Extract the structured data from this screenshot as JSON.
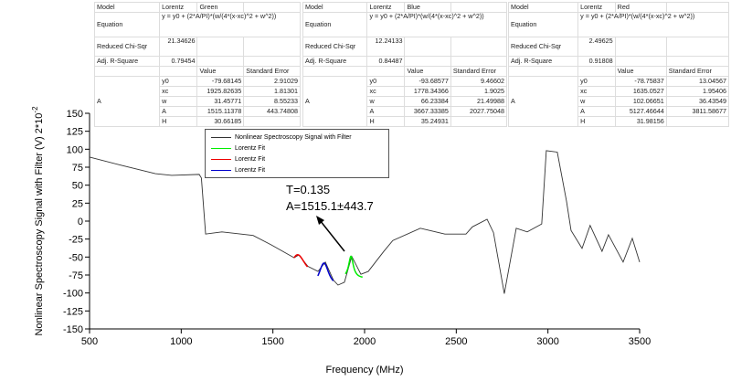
{
  "chart_data": {
    "type": "line",
    "xlabel": "Frequency (MHz)",
    "ylabel": "Nonlinear Spectroscopy Signal with Filter (V) 2*10",
    "ylabel_exponent": "-2",
    "xlim": [
      500,
      3500
    ],
    "ylim": [
      -150,
      150
    ],
    "xticks": [
      "500",
      "1000",
      "1500",
      "2000",
      "2500",
      "3000",
      "3500"
    ],
    "yticks": [
      "150",
      "125",
      "100",
      "75",
      "50",
      "25",
      "0",
      "-25",
      "-50",
      "-75",
      "-100",
      "-125",
      "-150"
    ],
    "legend_position": "top-center",
    "series": [
      {
        "name": "Nonlinear Spectroscopy Signal with Filter",
        "color": "#333333",
        "x": [
          500,
          674,
          859,
          948,
          1098,
          1110,
          1133,
          1222,
          1392,
          1491,
          1616,
          1641,
          1691,
          1746,
          1786,
          1830,
          1855,
          1890,
          1930,
          1980,
          2020,
          2105,
          2154,
          2304,
          2438,
          2553,
          2588,
          2668,
          2703,
          2762,
          2827,
          2887,
          2966,
          2991,
          3051,
          3101,
          3126,
          3186,
          3230,
          3295,
          3330,
          3410,
          3460,
          3500
        ],
        "y": [
          89,
          77.6,
          66,
          63.6,
          65,
          60,
          -18,
          -15,
          -20,
          -33,
          -51,
          -47,
          -63,
          -70,
          -57,
          -82,
          -89,
          -85,
          -49,
          -74,
          -70,
          -42,
          -27,
          -10,
          -18,
          -18,
          -8,
          2.6,
          -16,
          -101,
          -10,
          -15,
          -4,
          98,
          96,
          28,
          -13,
          -38,
          -6,
          -42,
          -19,
          -57,
          -24,
          -57
        ]
      },
      {
        "name": "Lorentz Fit",
        "color": "#00ee00",
        "fit": {
          "y0": -79.68145,
          "xc": 1925.82635,
          "w": 31.45771,
          "A": 1515.11378
        },
        "range": [
          1895,
          1990
        ]
      },
      {
        "name": "Lorentz Fit",
        "color": "#ee0000",
        "fit": {
          "y0": -78.75837,
          "xc": 1635.0527,
          "w": 102.06651,
          "A": 5127.46644
        },
        "range": [
          1615,
          1690
        ]
      },
      {
        "name": "Lorentz Fit",
        "color": "#0000cc",
        "fit": {
          "y0": -93.68577,
          "xc": 1778.34366,
          "w": 66.23384,
          "A": 3667.33385
        },
        "range": [
          1745,
          1830
        ]
      }
    ],
    "annotation": {
      "line1": "T=0.135",
      "line2": "A=1515.1±443.7"
    }
  },
  "fit_tables": [
    {
      "model_label": "Model",
      "model": "Lorentz",
      "name": "Green",
      "equation_label": "Equation",
      "equation": "y = y0 + (2*A/PI)*(w/(4*(x-xc)^2 + w^2))",
      "chi_label": "Reduced Chi-Sqr",
      "chi": "21.34626",
      "r2_label": "Adj. R-Square",
      "r2": "0.79454",
      "value_header": "Value",
      "error_header": "Standard Error",
      "group": "A",
      "params": [
        {
          "p": "y0",
          "v": "-79.68145",
          "e": "2.91029"
        },
        {
          "p": "xc",
          "v": "1925.82635",
          "e": "1.81301"
        },
        {
          "p": "w",
          "v": "31.45771",
          "e": "8.55233"
        },
        {
          "p": "A",
          "v": "1515.11378",
          "e": "443.74808"
        },
        {
          "p": "H",
          "v": "30.66185",
          "e": ""
        }
      ]
    },
    {
      "model_label": "Model",
      "model": "Lorentz",
      "name": "Blue",
      "equation_label": "Equation",
      "equation": "y = y0 + (2*A/PI)*(w/(4*(x-xc)^2 + w^2))",
      "chi_label": "Reduced Chi-Sqr",
      "chi": "12.24133",
      "r2_label": "Adj. R-Square",
      "r2": "0.84487",
      "value_header": "Value",
      "error_header": "Standard Error",
      "group": "A",
      "params": [
        {
          "p": "y0",
          "v": "-93.68577",
          "e": "9.46602"
        },
        {
          "p": "xc",
          "v": "1778.34366",
          "e": "1.9025"
        },
        {
          "p": "w",
          "v": "66.23384",
          "e": "21.49988"
        },
        {
          "p": "A",
          "v": "3667.33385",
          "e": "2027.75048"
        },
        {
          "p": "H",
          "v": "35.24931",
          "e": ""
        }
      ]
    },
    {
      "model_label": "Model",
      "model": "Lorentz",
      "name": "Red",
      "equation_label": "Equation",
      "equation": "y = y0 + (2*A/PI)*(w/(4*(x-xc)^2 + w^2))",
      "chi_label": "Reduced Chi-Sqr",
      "chi": "2.49625",
      "r2_label": "Adj. R-Square",
      "r2": "0.91808",
      "value_header": "Value",
      "error_header": "Standard Error",
      "group": "A",
      "params": [
        {
          "p": "y0",
          "v": "-78.75837",
          "e": "13.04567"
        },
        {
          "p": "xc",
          "v": "1635.0527",
          "e": "1.95406"
        },
        {
          "p": "w",
          "v": "102.06651",
          "e": "36.43549"
        },
        {
          "p": "A",
          "v": "5127.46644",
          "e": "3811.58677"
        },
        {
          "p": "H",
          "v": "31.98156",
          "e": ""
        }
      ]
    }
  ]
}
